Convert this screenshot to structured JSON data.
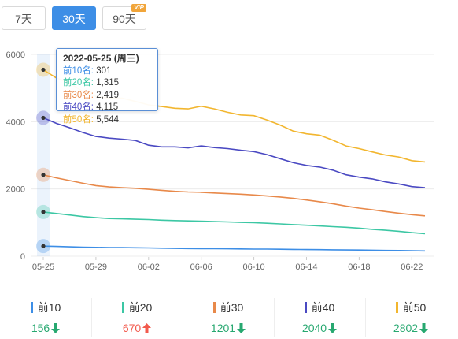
{
  "range_buttons": [
    {
      "label": "7天",
      "active": false
    },
    {
      "label": "30天",
      "active": true
    },
    {
      "label": "90天",
      "active": false,
      "badge": "VIP"
    }
  ],
  "tooltip": {
    "date": "2022-05-25 (周三)",
    "rows": [
      {
        "label": "前10名:",
        "value": "301",
        "color": "#3d8ee6"
      },
      {
        "label": "前20名:",
        "value": "1,315",
        "color": "#3cc7a4"
      },
      {
        "label": "前30名:",
        "value": "2,419",
        "color": "#e8894a"
      },
      {
        "label": "前40名:",
        "value": "4,115",
        "color": "#4a49c2"
      },
      {
        "label": "前50名:",
        "value": "5,544",
        "color": "#f2b62f"
      }
    ]
  },
  "stats": [
    {
      "name": "前10",
      "value": "156",
      "trend": "down",
      "color": "#3d8ee6"
    },
    {
      "name": "前20",
      "value": "670",
      "trend": "up",
      "color": "#3cc7a4"
    },
    {
      "name": "前30",
      "value": "1201",
      "trend": "down",
      "color": "#e8894a"
    },
    {
      "name": "前40",
      "value": "2040",
      "trend": "down",
      "color": "#4a49c2"
    },
    {
      "name": "前50",
      "value": "2802",
      "trend": "down",
      "color": "#f2b62f"
    }
  ],
  "chart_data": {
    "type": "line",
    "x": [
      "05-25",
      "05-26",
      "05-27",
      "05-28",
      "05-29",
      "05-30",
      "05-31",
      "06-01",
      "06-02",
      "06-03",
      "06-04",
      "06-05",
      "06-06",
      "06-07",
      "06-08",
      "06-09",
      "06-10",
      "06-11",
      "06-12",
      "06-13",
      "06-14",
      "06-15",
      "06-16",
      "06-17",
      "06-18",
      "06-19",
      "06-20",
      "06-21",
      "06-22",
      "06-23"
    ],
    "x_tick_labels": [
      "05-25",
      "05-29",
      "06-02",
      "06-06",
      "06-10",
      "06-14",
      "06-18",
      "06-22"
    ],
    "ylim": [
      0,
      6000
    ],
    "y_ticks": [
      0,
      2000,
      4000,
      6000
    ],
    "grid": true,
    "highlight_index": 0,
    "series": [
      {
        "name": "前10",
        "color": "#3d8ee6",
        "values": [
          301,
          290,
          280,
          270,
          262,
          258,
          255,
          250,
          245,
          238,
          232,
          228,
          226,
          222,
          220,
          216,
          212,
          210,
          206,
          202,
          198,
          195,
          190,
          186,
          182,
          178,
          172,
          168,
          162,
          156
        ]
      },
      {
        "name": "前20",
        "color": "#3cc7a4",
        "values": [
          1315,
          1270,
          1225,
          1180,
          1145,
          1120,
          1110,
          1100,
          1090,
          1070,
          1060,
          1050,
          1040,
          1030,
          1020,
          1005,
          995,
          980,
          960,
          940,
          920,
          900,
          880,
          860,
          835,
          800,
          770,
          740,
          700,
          670
        ]
      },
      {
        "name": "前30",
        "color": "#e8894a",
        "values": [
          2419,
          2330,
          2250,
          2170,
          2100,
          2060,
          2040,
          2020,
          1990,
          1960,
          1930,
          1910,
          1900,
          1880,
          1860,
          1845,
          1820,
          1790,
          1760,
          1720,
          1670,
          1620,
          1560,
          1490,
          1430,
          1380,
          1330,
          1280,
          1235,
          1201
        ]
      },
      {
        "name": "前40",
        "color": "#4a49c2",
        "values": [
          4115,
          3950,
          3820,
          3680,
          3560,
          3510,
          3480,
          3440,
          3300,
          3250,
          3250,
          3220,
          3280,
          3230,
          3200,
          3150,
          3110,
          3020,
          2900,
          2780,
          2700,
          2650,
          2560,
          2420,
          2350,
          2300,
          2210,
          2150,
          2070,
          2040
        ]
      },
      {
        "name": "前50",
        "color": "#f2b62f",
        "values": [
          5544,
          5300,
          5150,
          4900,
          4750,
          4700,
          4700,
          4600,
          4500,
          4450,
          4400,
          4380,
          4460,
          4380,
          4280,
          4200,
          4180,
          4050,
          3900,
          3720,
          3640,
          3600,
          3450,
          3280,
          3200,
          3100,
          3010,
          2950,
          2840,
          2802
        ]
      }
    ]
  }
}
